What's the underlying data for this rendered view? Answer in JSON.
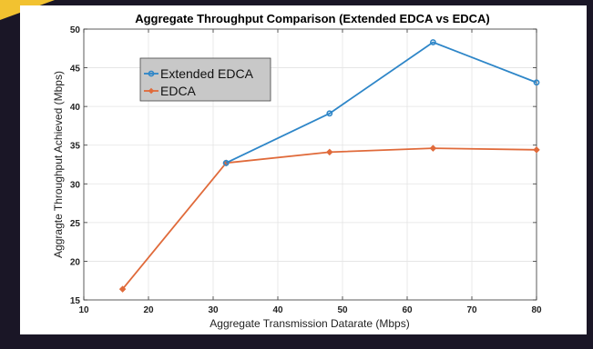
{
  "chart_data": {
    "type": "line",
    "title": "Aggregate Throughput Comparison (Extended EDCA vs EDCA)",
    "xlabel": "Aggregate Transmission Datarate (Mbps)",
    "ylabel": "Aggragte Throughput Achieved (Mbps)",
    "xlim": [
      10,
      80
    ],
    "ylim": [
      15,
      50
    ],
    "xticks": [
      "10",
      "20",
      "30",
      "40",
      "50",
      "60",
      "70",
      "80"
    ],
    "yticks": [
      "15",
      "20",
      "25",
      "30",
      "35",
      "40",
      "45",
      "50"
    ],
    "x": [
      16,
      32,
      48,
      64,
      80
    ],
    "legend_position": "top-left",
    "series": [
      {
        "name": "Extended EDCA",
        "color": "#2e86c8",
        "marker": "circle",
        "x": [
          32,
          48,
          64,
          80
        ],
        "values": [
          32.7,
          39.1,
          48.3,
          43.1
        ]
      },
      {
        "name": "EDCA",
        "color": "#e06a3a",
        "marker": "diamond",
        "x": [
          16,
          32,
          48,
          64,
          80
        ],
        "values": [
          16.4,
          32.7,
          34.1,
          34.6,
          34.4
        ]
      }
    ]
  },
  "colors": {
    "background": "#1a1626",
    "slide": "#ffffff",
    "accent": "#f2c230",
    "legend_box": "#c8c8c8"
  }
}
